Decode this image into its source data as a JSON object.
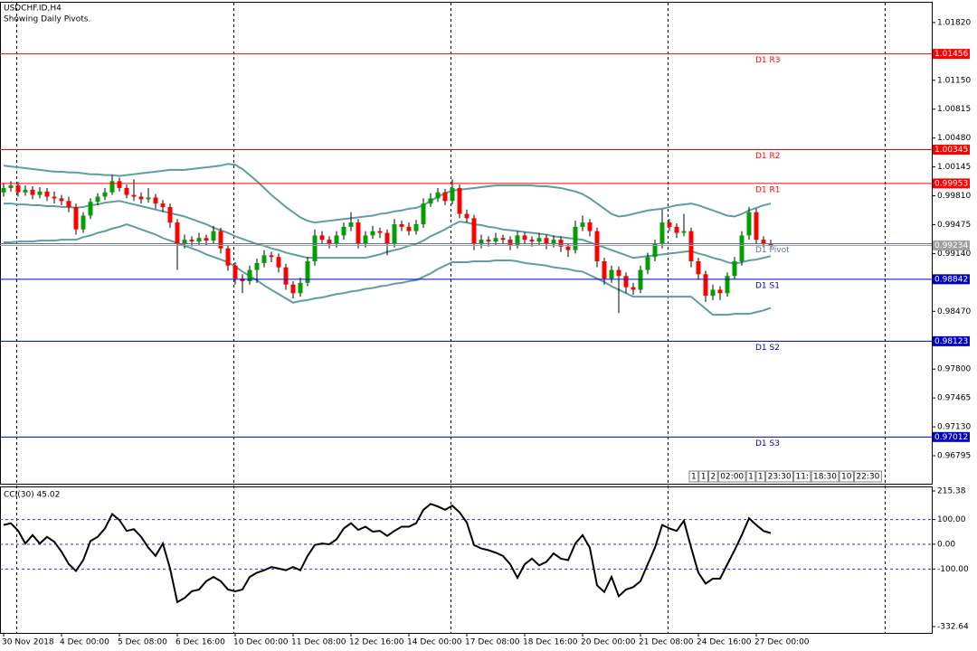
{
  "header": {
    "title": "USDCHF.ID,H4",
    "note": "Showing Daily Pivots."
  },
  "chart_data": [
    {
      "type": "candlestick",
      "up_color": "#00a000",
      "down_color": "#ff0000",
      "wick_color": "#000000",
      "ylim": [
        0.9647,
        1.0206
      ],
      "yticks": [
        {
          "value": 1.0182,
          "label": "1.01820"
        },
        {
          "value": 1.0115,
          "label": "1.01150"
        },
        1.00815,
        {
          "value": 1.0048,
          "label": "1.00480"
        },
        1.00145,
        {
          "value": 0.9981,
          "label": "0.99810"
        },
        0.99475,
        {
          "value": 0.9914,
          "label": "0.99140"
        },
        {
          "value": 0.9847,
          "label": "0.98470"
        },
        {
          "value": 0.978,
          "label": "0.97800"
        },
        0.97465,
        {
          "value": 0.9713,
          "label": "0.97130"
        },
        0.96795
      ],
      "open": [
        0.9985,
        0.999,
        0.9993,
        0.9985,
        0.9988,
        0.9982,
        0.9986,
        0.998,
        0.9978,
        0.9975,
        0.9968,
        0.9942,
        0.9958,
        0.9974,
        0.998,
        0.9985,
        0.9998,
        0.999,
        0.9982,
        0.998,
        0.9977,
        0.9979,
        0.9972,
        0.9968,
        0.995,
        0.9925,
        0.993,
        0.9928,
        0.9932,
        0.9929,
        0.994,
        0.992,
        0.99,
        0.9885,
        0.9882,
        0.9895,
        0.9903,
        0.9912,
        0.991,
        0.9898,
        0.9878,
        0.9868,
        0.988,
        0.9905,
        0.9935,
        0.993,
        0.9925,
        0.9935,
        0.9945,
        0.995,
        0.9925,
        0.9935,
        0.994,
        0.9938,
        0.9925,
        0.9948,
        0.9945,
        0.994,
        0.9948,
        0.9972,
        0.9978,
        0.9985,
        0.9975,
        0.999,
        0.996,
        0.9955,
        0.9925,
        0.993,
        0.9928,
        0.9932,
        0.993,
        0.9924,
        0.9935,
        0.993,
        0.9928,
        0.9932,
        0.9925,
        0.993,
        0.9922,
        0.9918,
        0.9945,
        0.995,
        0.994,
        0.9905,
        0.9885,
        0.9895,
        0.9888,
        0.9875,
        0.9872,
        0.9895,
        0.991,
        0.9925,
        0.995,
        0.9945,
        0.9938,
        0.994,
        0.9905,
        0.989,
        0.9865,
        0.9872,
        0.9868,
        0.9888,
        0.9905,
        0.9935,
        0.9962,
        0.993,
        0.9926
      ],
      "high": [
        0.9996,
        0.9998,
        0.9997,
        0.9993,
        0.9992,
        0.9991,
        0.999,
        0.9986,
        0.9982,
        0.998,
        0.9972,
        0.9962,
        0.9978,
        0.9984,
        0.999,
        1.0005,
        1.0002,
        0.9994,
        1.0,
        0.9985,
        0.999,
        0.9983,
        0.9976,
        0.9972,
        0.9954,
        0.9936,
        0.9934,
        0.9938,
        0.9936,
        0.9946,
        0.9944,
        0.9924,
        0.9904,
        0.989,
        0.99,
        0.9908,
        0.9918,
        0.9916,
        0.9914,
        0.9902,
        0.9882,
        0.9886,
        0.991,
        0.9942,
        0.994,
        0.9934,
        0.994,
        0.995,
        0.9962,
        0.9954,
        0.994,
        0.9946,
        0.9944,
        0.9942,
        0.9954,
        0.9952,
        0.995,
        0.9953,
        0.9978,
        0.9984,
        0.999,
        0.9989,
        1.0,
        0.9994,
        0.9965,
        0.9959,
        0.9936,
        0.9934,
        0.9938,
        0.9936,
        0.9934,
        0.994,
        0.9939,
        0.9934,
        0.9938,
        0.9936,
        0.9935,
        0.9934,
        0.9926,
        0.9952,
        0.9958,
        0.9954,
        0.9944,
        0.9909,
        0.99,
        0.9899,
        0.9892,
        0.988,
        0.99,
        0.9915,
        0.993,
        0.9965,
        0.9954,
        0.9949,
        0.996,
        0.9944,
        0.9909,
        0.9894,
        0.9878,
        0.9876,
        0.9892,
        0.991,
        0.994,
        0.9968,
        0.9966,
        0.9934,
        0.993
      ],
      "low": [
        0.998,
        0.9986,
        0.998,
        0.9981,
        0.9977,
        0.9978,
        0.9975,
        0.9972,
        0.997,
        0.9962,
        0.9936,
        0.9938,
        0.9954,
        0.997,
        0.9976,
        0.9982,
        0.9986,
        0.9978,
        0.9975,
        0.9972,
        0.9973,
        0.9966,
        0.9962,
        0.9944,
        0.9895,
        0.992,
        0.9922,
        0.9924,
        0.9923,
        0.9925,
        0.9914,
        0.9894,
        0.9878,
        0.9868,
        0.9878,
        0.988,
        0.9898,
        0.9904,
        0.9892,
        0.9872,
        0.9862,
        0.9864,
        0.9876,
        0.99,
        0.9926,
        0.992,
        0.9921,
        0.993,
        0.994,
        0.992,
        0.9921,
        0.9931,
        0.9932,
        0.9912,
        0.9921,
        0.994,
        0.9935,
        0.9936,
        0.9944,
        0.9968,
        0.9974,
        0.997,
        0.9971,
        0.9955,
        0.995,
        0.9918,
        0.992,
        0.9922,
        0.9924,
        0.9925,
        0.9918,
        0.992,
        0.9925,
        0.9922,
        0.9924,
        0.9919,
        0.9921,
        0.9916,
        0.991,
        0.9914,
        0.994,
        0.9934,
        0.9898,
        0.9878,
        0.988,
        0.9845,
        0.9868,
        0.9866,
        0.9868,
        0.989,
        0.9905,
        0.992,
        0.994,
        0.9932,
        0.9934,
        0.9898,
        0.9884,
        0.9858,
        0.986,
        0.986,
        0.9864,
        0.9884,
        0.99,
        0.993,
        0.9926,
        0.9922,
        0.992
      ],
      "close": [
        0.999,
        0.9993,
        0.9985,
        0.9988,
        0.9982,
        0.9986,
        0.998,
        0.9978,
        0.9975,
        0.9968,
        0.9942,
        0.9958,
        0.9974,
        0.998,
        0.9985,
        0.9998,
        0.999,
        0.9982,
        0.998,
        0.9977,
        0.9979,
        0.9972,
        0.9968,
        0.995,
        0.9925,
        0.993,
        0.9928,
        0.9932,
        0.9929,
        0.994,
        0.992,
        0.99,
        0.9885,
        0.9882,
        0.9895,
        0.9903,
        0.9912,
        0.991,
        0.9898,
        0.9878,
        0.9868,
        0.988,
        0.9905,
        0.9935,
        0.993,
        0.9925,
        0.9935,
        0.9945,
        0.995,
        0.9925,
        0.9935,
        0.994,
        0.9938,
        0.9925,
        0.9948,
        0.9945,
        0.994,
        0.9948,
        0.9972,
        0.9978,
        0.9985,
        0.9975,
        0.999,
        0.996,
        0.9955,
        0.9925,
        0.993,
        0.9928,
        0.9932,
        0.993,
        0.9924,
        0.9935,
        0.993,
        0.9928,
        0.9932,
        0.9925,
        0.993,
        0.9922,
        0.9918,
        0.9945,
        0.995,
        0.994,
        0.9905,
        0.9885,
        0.9895,
        0.9888,
        0.9875,
        0.9872,
        0.9895,
        0.991,
        0.9925,
        0.995,
        0.9945,
        0.9938,
        0.994,
        0.9905,
        0.989,
        0.9865,
        0.9872,
        0.9868,
        0.9888,
        0.9905,
        0.9935,
        0.9962,
        0.993,
        0.9926,
        0.9923
      ],
      "overlays": [
        {
          "color": "#5f9ea0",
          "values": [
            1.0016,
            1.0015,
            1.0014,
            1.0013,
            1.0012,
            1.0011,
            1.001,
            1.0009,
            1.0009,
            1.0008,
            1.0008,
            1.0007,
            1.0006,
            1.0006,
            1.0005,
            1.0005,
            1.0004,
            1.0005,
            1.0006,
            1.0007,
            1.0008,
            1.0009,
            1.001,
            1.0011,
            1.0011,
            1.0011,
            1.0012,
            1.0013,
            1.0014,
            1.0015,
            1.0016,
            1.0018,
            1.0017,
            1.0012,
            1.0005,
            0.9998,
            0.999,
            0.9982,
            0.9975,
            0.9968,
            0.9962,
            0.9956,
            0.9952,
            0.995,
            0.9951,
            0.9952,
            0.9953,
            0.9954,
            0.9955,
            0.9956,
            0.9957,
            0.9958,
            0.996,
            0.9961,
            0.9963,
            0.9964,
            0.9966,
            0.9967,
            0.997,
            0.9975,
            0.998,
            0.9984,
            0.9987,
            0.9988,
            0.9989,
            0.999,
            0.9991,
            0.9992,
            0.9993,
            0.9993,
            0.9993,
            0.9993,
            0.9993,
            0.9993,
            0.9992,
            0.9992,
            0.9991,
            0.999,
            0.9988,
            0.9986,
            0.9983,
            0.9978,
            0.9972,
            0.9966,
            0.996,
            0.9957,
            0.9958,
            0.996,
            0.9962,
            0.9964,
            0.9965,
            0.9966,
            0.9968,
            0.997,
            0.9971,
            0.9972,
            0.997,
            0.9967,
            0.9964,
            0.9961,
            0.9958,
            0.9957,
            0.996,
            0.9964,
            0.9967,
            0.997,
            0.9972
          ]
        },
        {
          "color": "#5f9ea0",
          "values": [
            0.9972,
            0.9972,
            0.9971,
            0.9971,
            0.997,
            0.997,
            0.9969,
            0.9969,
            0.9968,
            0.9968,
            0.9967,
            0.9968,
            0.997,
            0.9971,
            0.9973,
            0.9974,
            0.9975,
            0.9973,
            0.9971,
            0.9969,
            0.9967,
            0.9965,
            0.9963,
            0.9961,
            0.9959,
            0.9957,
            0.9954,
            0.9951,
            0.9948,
            0.9944,
            0.9941,
            0.9938,
            0.9934,
            0.9931,
            0.9928,
            0.9925,
            0.9923,
            0.992,
            0.9918,
            0.9915,
            0.9913,
            0.9911,
            0.9909,
            0.9909,
            0.9909,
            0.9909,
            0.9909,
            0.9909,
            0.9909,
            0.9909,
            0.9909,
            0.9911,
            0.9913,
            0.9916,
            0.9918,
            0.992,
            0.9923,
            0.9925,
            0.9929,
            0.9934,
            0.9938,
            0.9942,
            0.9947,
            0.9951,
            0.995,
            0.9948,
            0.9947,
            0.9945,
            0.9944,
            0.9942,
            0.9941,
            0.994,
            0.9939,
            0.9938,
            0.9937,
            0.9936,
            0.9934,
            0.9933,
            0.9932,
            0.9931,
            0.993,
            0.9927,
            0.9924,
            0.9921,
            0.9918,
            0.9915,
            0.9912,
            0.9909,
            0.991,
            0.9911,
            0.9912,
            0.9913,
            0.9914,
            0.9915,
            0.9916,
            0.9917,
            0.9914,
            0.9912,
            0.9909,
            0.9907,
            0.9904,
            0.9902,
            0.9904,
            0.9906,
            0.9907,
            0.9909,
            0.9911
          ]
        },
        {
          "color": "#5f9ea0",
          "values": [
            0.9927,
            0.9927,
            0.9928,
            0.9928,
            0.9928,
            0.9929,
            0.9929,
            0.9929,
            0.993,
            0.993,
            0.993,
            0.9933,
            0.9935,
            0.9938,
            0.994,
            0.9943,
            0.9945,
            0.9948,
            0.9945,
            0.9942,
            0.9939,
            0.9936,
            0.9932,
            0.9929,
            0.9926,
            0.9923,
            0.992,
            0.9917,
            0.9913,
            0.991,
            0.9907,
            0.9904,
            0.9899,
            0.9893,
            0.9888,
            0.9883,
            0.9877,
            0.9872,
            0.9867,
            0.9862,
            0.9857,
            0.9859,
            0.986,
            0.9862,
            0.9863,
            0.9865,
            0.9867,
            0.9868,
            0.987,
            0.9871,
            0.9873,
            0.9874,
            0.9876,
            0.9877,
            0.9879,
            0.988,
            0.9882,
            0.9883,
            0.9887,
            0.9891,
            0.9896,
            0.99,
            0.9904,
            0.9904,
            0.9904,
            0.9905,
            0.9905,
            0.9905,
            0.9906,
            0.9906,
            0.9906,
            0.9905,
            0.9903,
            0.9902,
            0.9901,
            0.99,
            0.9898,
            0.9897,
            0.9896,
            0.9894,
            0.9893,
            0.9889,
            0.9885,
            0.9881,
            0.9876,
            0.9872,
            0.9868,
            0.9864,
            0.9864,
            0.9864,
            0.9864,
            0.9864,
            0.9864,
            0.9864,
            0.9864,
            0.9864,
            0.9857,
            0.985,
            0.9843,
            0.9843,
            0.9843,
            0.9844,
            0.9844,
            0.9844,
            0.9846,
            0.9848,
            0.9851
          ]
        }
      ],
      "levels": [
        {
          "name": "D1 R3",
          "value": 1.01456,
          "color": "#ff0000"
        },
        {
          "name": "D1 R2",
          "value": 1.00345,
          "color": "#ff0000"
        },
        {
          "name": "D1 R1",
          "value": 0.99953,
          "color": "#ff0000"
        },
        {
          "name": "D1 S1",
          "value": 0.98842,
          "color": "#0000c0"
        },
        {
          "name": "D1 S2",
          "value": 0.98123,
          "color": "#0000c0"
        },
        {
          "name": "D1 S3",
          "value": 0.97012,
          "color": "#0000c0"
        }
      ],
      "pivot": {
        "name": "D1 Pivot",
        "value": 0.99254,
        "color": "#6070a0"
      },
      "last_price": {
        "value": 0.99234,
        "color": "#a0a0a0"
      }
    },
    {
      "type": "line",
      "title": "CCI(30) 45.02",
      "color": "#000000",
      "grid_color": "#3030c0",
      "ylim": [
        -332.64,
        215.38
      ],
      "yticks": [
        215.38,
        {
          "value": 100,
          "label": "100.00"
        },
        {
          "value": 0,
          "label": "0.00"
        },
        {
          "value": -100,
          "label": "-100.00"
        },
        -332.64
      ],
      "categories": [
        "30 Nov 2018",
        null,
        null,
        null,
        null,
        null,
        null,
        null,
        "4 Dec 00:00",
        null,
        null,
        null,
        null,
        null,
        null,
        null,
        "5 Dec 08:00",
        null,
        null,
        null,
        null,
        null,
        null,
        null,
        "6 Dec 16:00",
        null,
        null,
        null,
        null,
        null,
        null,
        null,
        "10 Dec 00:00",
        null,
        null,
        null,
        null,
        null,
        null,
        null,
        "11 Dec 08:00",
        null,
        null,
        null,
        null,
        null,
        null,
        null,
        "12 Dec 16:00",
        null,
        null,
        null,
        null,
        null,
        null,
        null,
        "14 Dec 00:00",
        null,
        null,
        null,
        null,
        null,
        null,
        null,
        "17 Dec 08:00",
        null,
        null,
        null,
        null,
        null,
        null,
        null,
        "18 Dec 16:00",
        null,
        null,
        null,
        null,
        null,
        null,
        null,
        "20 Dec 00:00",
        null,
        null,
        null,
        null,
        null,
        null,
        null,
        "21 Dec 08:00",
        null,
        null,
        null,
        null,
        null,
        null,
        null,
        "24 Dec 16:00",
        null,
        null,
        null,
        null,
        null,
        null,
        null,
        "27 Dec 00:00",
        null,
        null
      ],
      "values": [
        78,
        85,
        55,
        3,
        37,
        3,
        30,
        10,
        -30,
        -80,
        -108,
        -64,
        13,
        30,
        64,
        122,
        98,
        54,
        61,
        30,
        -14,
        -47,
        3,
        -98,
        -234,
        -217,
        -190,
        -183,
        -149,
        -132,
        -149,
        -183,
        -190,
        -183,
        -132,
        -115,
        -105,
        -92,
        -98,
        -105,
        -92,
        -105,
        -47,
        -3,
        3,
        0,
        20,
        64,
        85,
        58,
        71,
        51,
        54,
        34,
        54,
        71,
        71,
        85,
        139,
        163,
        153,
        139,
        156,
        129,
        88,
        -3,
        -17,
        -24,
        -34,
        -47,
        -81,
        -136,
        -81,
        -58,
        -85,
        -71,
        -37,
        -58,
        -64,
        3,
        37,
        -14,
        -166,
        -193,
        -132,
        -210,
        -183,
        -173,
        -149,
        -81,
        -14,
        78,
        64,
        54,
        95,
        -14,
        -115,
        -159,
        -139,
        -139,
        -81,
        -24,
        37,
        105,
        78,
        54,
        45.02
      ]
    }
  ],
  "toolbar": [
    "1",
    "1",
    "2",
    "02:00",
    "1",
    "1",
    "23:30",
    "11:",
    "18:30",
    "10",
    "22:30"
  ]
}
